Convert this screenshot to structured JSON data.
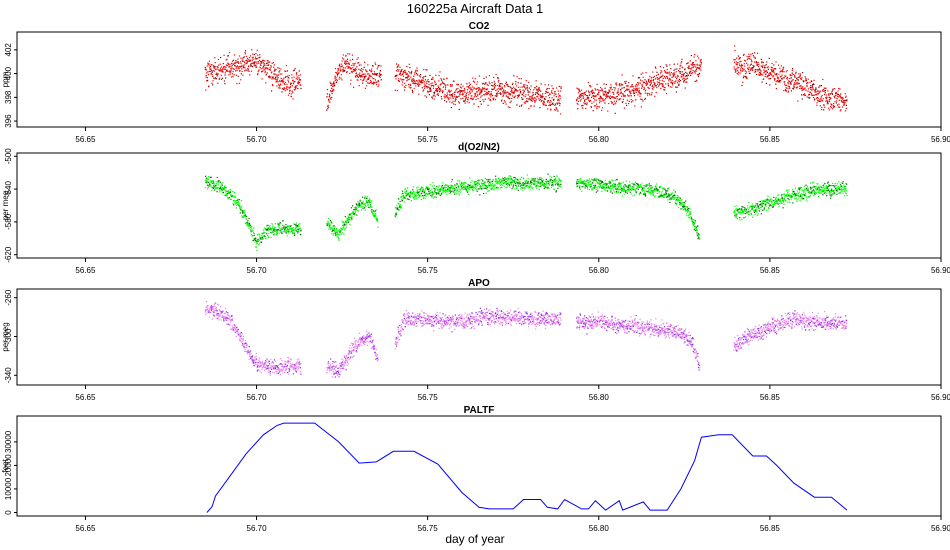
{
  "page": {
    "title": "160225a    Aircraft Data 1",
    "xlabel": "day of year"
  },
  "chart_data": [
    {
      "type": "scatter",
      "title": "CO2",
      "ylabel": "ppm",
      "color": "#ff0000",
      "darker_color": "#8b0000",
      "xlim": [
        56.63,
        56.9
      ],
      "ylim": [
        395.5,
        403.5
      ],
      "x_ticks": [
        56.65,
        56.7,
        56.75,
        56.8,
        56.85,
        56.9
      ],
      "x_tick_labels": [
        "56.65",
        "56.70",
        "56.75",
        "56.80",
        "56.85",
        "56.90"
      ],
      "y_ticks": [
        396,
        398,
        400,
        402
      ],
      "y_tick_labels": [
        "396",
        "398",
        "400",
        "402"
      ],
      "noise": 0.55,
      "segments": [
        {
          "x": [
            56.685,
            56.69,
            56.695,
            56.7,
            56.703,
            56.706,
            56.71,
            56.713
          ],
          "y": [
            400.0,
            400.3,
            400.7,
            401.0,
            400.5,
            399.7,
            399.0,
            399.4
          ]
        },
        {
          "x": [
            56.7205,
            56.723,
            56.726,
            56.729,
            56.733,
            56.7365
          ],
          "y": [
            397.5,
            399.5,
            400.8,
            400.2,
            399.8,
            400.0
          ]
        },
        {
          "x": [
            56.7405,
            56.746,
            56.752,
            56.758,
            56.764,
            56.77,
            56.776,
            56.782,
            56.789
          ],
          "y": [
            399.9,
            399.6,
            398.9,
            398.3,
            398.5,
            398.6,
            398.3,
            398.1,
            397.9
          ]
        },
        {
          "x": [
            56.7935,
            56.8,
            56.806,
            56.812,
            56.818,
            56.824,
            56.83
          ],
          "y": [
            398.0,
            398.0,
            398.2,
            398.7,
            399.4,
            400.0,
            400.7
          ]
        },
        {
          "x": [
            56.8395,
            56.845,
            56.851,
            56.857,
            56.862,
            56.867,
            56.8725
          ],
          "y": [
            400.8,
            400.6,
            400.0,
            399.3,
            398.6,
            397.9,
            397.7
          ]
        }
      ]
    },
    {
      "type": "scatter",
      "title": "d(O2/N2)",
      "ylabel": "per meg",
      "color": "#00ff00",
      "darker_color": "#006400",
      "xlim": [
        56.63,
        56.9
      ],
      "ylim": [
        -624,
        -496
      ],
      "x_ticks": [
        56.65,
        56.7,
        56.75,
        56.8,
        56.85,
        56.9
      ],
      "x_tick_labels": [
        "56.65",
        "56.70",
        "56.75",
        "56.80",
        "56.85",
        "56.90"
      ],
      "y_ticks": [
        -620,
        -580,
        -540,
        -500
      ],
      "y_tick_labels": [
        "-620",
        "-580",
        "-540",
        "-500"
      ],
      "noise": 4,
      "segments": [
        {
          "x": [
            56.685,
            56.688,
            56.692,
            56.695,
            56.698,
            56.7,
            56.703,
            56.707,
            56.713
          ],
          "y": [
            -530,
            -535,
            -545,
            -560,
            -585,
            -605,
            -592,
            -588,
            -588
          ]
        },
        {
          "x": [
            56.7205,
            56.724,
            56.727,
            56.73,
            56.733,
            56.7355
          ],
          "y": [
            -580,
            -595,
            -575,
            -560,
            -555,
            -580
          ]
        },
        {
          "x": [
            56.7405,
            56.743,
            56.75,
            56.758,
            56.766,
            56.774,
            56.782,
            56.789
          ],
          "y": [
            -570,
            -548,
            -543,
            -538,
            -535,
            -532,
            -533,
            -532
          ]
        },
        {
          "x": [
            56.7935,
            56.8,
            56.806,
            56.812,
            56.817,
            56.822,
            56.826,
            56.8295
          ],
          "y": [
            -533,
            -535,
            -538,
            -540,
            -542,
            -550,
            -565,
            -600
          ]
        },
        {
          "x": [
            56.8395,
            56.845,
            56.851,
            56.857,
            56.863,
            56.8725
          ],
          "y": [
            -570,
            -565,
            -555,
            -548,
            -542,
            -540
          ]
        }
      ]
    },
    {
      "type": "scatter",
      "title": "APO",
      "ylabel": "per meg",
      "color": "#ee82ee",
      "darker_color": "#8b2be2",
      "xlim": [
        56.63,
        56.9
      ],
      "ylim": [
        -350,
        -251
      ],
      "x_ticks": [
        56.65,
        56.7,
        56.75,
        56.8,
        56.85,
        56.9
      ],
      "x_tick_labels": [
        "56.65",
        "56.70",
        "56.75",
        "56.80",
        "56.85",
        "56.90"
      ],
      "y_ticks": [
        -340,
        -300,
        -260
      ],
      "y_tick_labels": [
        "-340",
        "-300",
        "-260"
      ],
      "noise": 4,
      "segments": [
        {
          "x": [
            56.685,
            56.689,
            56.693,
            56.696,
            56.699,
            56.702,
            56.706,
            56.713
          ],
          "y": [
            -270,
            -275,
            -285,
            -305,
            -325,
            -330,
            -332,
            -330
          ]
        },
        {
          "x": [
            56.7205,
            56.724,
            56.727,
            56.73,
            56.733,
            56.7355
          ],
          "y": [
            -330,
            -335,
            -320,
            -305,
            -300,
            -325
          ]
        },
        {
          "x": [
            56.7405,
            56.743,
            56.75,
            56.758,
            56.766,
            56.774,
            56.782,
            56.789
          ],
          "y": [
            -310,
            -283,
            -282,
            -285,
            -280,
            -280,
            -282,
            -283
          ]
        },
        {
          "x": [
            56.7935,
            56.8,
            56.806,
            56.812,
            56.818,
            56.823,
            56.827,
            56.8295
          ],
          "y": [
            -285,
            -285,
            -288,
            -290,
            -293,
            -295,
            -305,
            -330
          ]
        },
        {
          "x": [
            56.8395,
            56.845,
            56.851,
            56.857,
            56.863,
            56.8725
          ],
          "y": [
            -310,
            -298,
            -290,
            -283,
            -285,
            -287
          ]
        }
      ]
    },
    {
      "type": "line",
      "title": "PALTF",
      "ylabel": "feet",
      "color": "#0000ff",
      "xlim": [
        56.63,
        56.9
      ],
      "ylim": [
        -1500,
        41000
      ],
      "x_ticks": [
        56.65,
        56.7,
        56.75,
        56.8,
        56.85,
        56.9
      ],
      "x_tick_labels": [
        "56.65",
        "56.70",
        "56.75",
        "56.80",
        "56.85",
        "56.90"
      ],
      "y_ticks": [
        0,
        10000,
        20000,
        30000
      ],
      "y_tick_labels": [
        "0",
        "10000",
        "20000",
        "30000"
      ],
      "x": [
        56.6855,
        56.687,
        56.688,
        56.692,
        56.697,
        56.702,
        56.706,
        56.708,
        56.712,
        56.717,
        56.724,
        56.73,
        56.735,
        56.74,
        56.746,
        56.753,
        56.76,
        56.765,
        56.768,
        56.772,
        56.775,
        56.778,
        56.783,
        56.785,
        56.788,
        56.79,
        56.795,
        56.797,
        56.799,
        56.802,
        56.806,
        56.807,
        56.813,
        56.815,
        56.82,
        56.824,
        56.828,
        56.83,
        56.835,
        56.839,
        56.845,
        56.849,
        56.852,
        56.857,
        56.863,
        56.868,
        56.8725
      ],
      "y": [
        0,
        2500,
        7000,
        15000,
        25000,
        33000,
        37000,
        38000,
        38000,
        38000,
        30000,
        21000,
        21500,
        26000,
        26000,
        20500,
        8500,
        2200,
        1500,
        1500,
        1500,
        5500,
        5500,
        2200,
        1500,
        5500,
        1500,
        1500,
        5000,
        1000,
        5000,
        1000,
        4500,
        1000,
        1000,
        10000,
        22000,
        32000,
        33000,
        33000,
        24000,
        24000,
        20000,
        12500,
        6500,
        6500,
        1000
      ]
    }
  ]
}
